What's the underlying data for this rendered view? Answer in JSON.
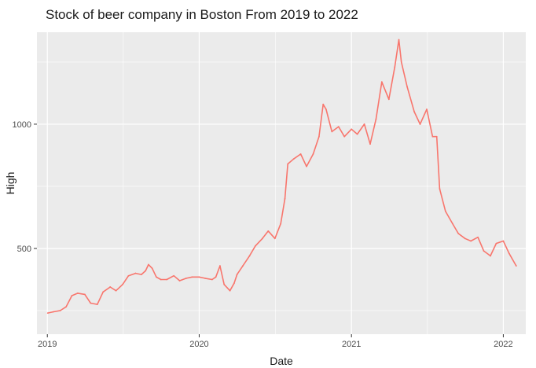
{
  "chart_data": {
    "type": "line",
    "title": "Stock of beer company in Boston From 2019 to 2022",
    "xlabel": "Date",
    "ylabel": "High",
    "x_ticks": [
      "2019",
      "2020",
      "2021",
      "2022"
    ],
    "y_ticks": [
      "500",
      "1000"
    ],
    "xlim": [
      "2018-12-07",
      "2022-02-24"
    ],
    "ylim": [
      155,
      1370
    ],
    "grid": true,
    "colors": {
      "line": "#f8766d",
      "panel": "#ebebeb",
      "grid": "#ffffff"
    },
    "series": [
      {
        "x": [
          "2019-01-02",
          "2019-01-15",
          "2019-02-01",
          "2019-02-15",
          "2019-03-01",
          "2019-03-15",
          "2019-04-01",
          "2019-04-15",
          "2019-05-01",
          "2019-05-15",
          "2019-06-01",
          "2019-06-15",
          "2019-07-01",
          "2019-07-15",
          "2019-08-01",
          "2019-08-15",
          "2019-08-25",
          "2019-09-01",
          "2019-09-10",
          "2019-09-20",
          "2019-10-01",
          "2019-10-15",
          "2019-11-01",
          "2019-11-15",
          "2019-12-01",
          "2019-12-15",
          "2020-01-01",
          "2020-01-15",
          "2020-02-01",
          "2020-02-10",
          "2020-02-20",
          "2020-03-01",
          "2020-03-15",
          "2020-03-25",
          "2020-04-01",
          "2020-04-15",
          "2020-05-01",
          "2020-05-15",
          "2020-06-01",
          "2020-06-15",
          "2020-07-01",
          "2020-07-15",
          "2020-07-25",
          "2020-08-01",
          "2020-08-15",
          "2020-09-01",
          "2020-09-15",
          "2020-10-01",
          "2020-10-15",
          "2020-10-25",
          "2020-11-01",
          "2020-11-15",
          "2020-12-01",
          "2020-12-15",
          "2021-01-01",
          "2021-01-15",
          "2021-02-01",
          "2021-02-15",
          "2021-03-01",
          "2021-03-15",
          "2021-04-01",
          "2021-04-15",
          "2021-04-25",
          "2021-05-01",
          "2021-05-15",
          "2021-06-01",
          "2021-06-15",
          "2021-07-01",
          "2021-07-15",
          "2021-07-25",
          "2021-08-01",
          "2021-08-15",
          "2021-09-01",
          "2021-09-15",
          "2021-10-01",
          "2021-10-15",
          "2021-11-01",
          "2021-11-15",
          "2021-12-01",
          "2021-12-15",
          "2022-01-01",
          "2022-01-15",
          "2022-02-01"
        ],
        "y": [
          240,
          245,
          250,
          265,
          310,
          320,
          315,
          280,
          275,
          325,
          345,
          330,
          355,
          390,
          400,
          395,
          410,
          435,
          420,
          385,
          375,
          375,
          390,
          370,
          380,
          385,
          385,
          380,
          375,
          385,
          430,
          355,
          330,
          360,
          395,
          430,
          470,
          510,
          540,
          570,
          540,
          600,
          700,
          840,
          860,
          880,
          830,
          880,
          950,
          1080,
          1060,
          970,
          990,
          950,
          980,
          960,
          1000,
          920,
          1020,
          1170,
          1100,
          1230,
          1340,
          1250,
          1150,
          1050,
          1000,
          1060,
          950,
          950,
          740,
          650,
          600,
          560,
          540,
          530,
          545,
          490,
          470,
          520,
          530,
          480,
          430
        ]
      }
    ]
  }
}
